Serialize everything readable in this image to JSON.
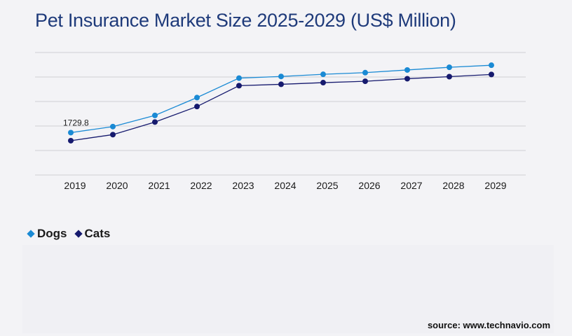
{
  "title": "Pet Insurance Market Size 2025-2029 (US$ Million)",
  "source": "source: www.technavio.com",
  "colors": {
    "dogs": "#1a8ad4",
    "cats": "#161a6e",
    "grid": "#cfcfd4",
    "title": "#1e3a7a"
  },
  "chart_data": {
    "type": "line",
    "title": "Pet Insurance Market Size 2025-2029 (US$ Million)",
    "xlabel": "",
    "ylabel": "",
    "categories": [
      "2019",
      "2020",
      "2021",
      "2022",
      "2023",
      "2024",
      "2025",
      "2026",
      "2027",
      "2028",
      "2029"
    ],
    "series": [
      {
        "name": "Dogs",
        "values": [
          1729.8,
          1976,
          2432,
          3160,
          3955,
          4022,
          4110,
          4178,
          4287,
          4396,
          4481
        ]
      },
      {
        "name": "Cats",
        "values": [
          1401,
          1648,
          2162,
          2795,
          3646,
          3702,
          3770,
          3826,
          3930,
          4014,
          4104
        ]
      }
    ],
    "data_labels": [
      {
        "series": "Dogs",
        "index": 0,
        "text": "1729.8"
      }
    ],
    "ylim": [
      0,
      6000
    ],
    "gridlines": true,
    "y_tick_labels_shown": false,
    "legend": "bottom-left"
  }
}
